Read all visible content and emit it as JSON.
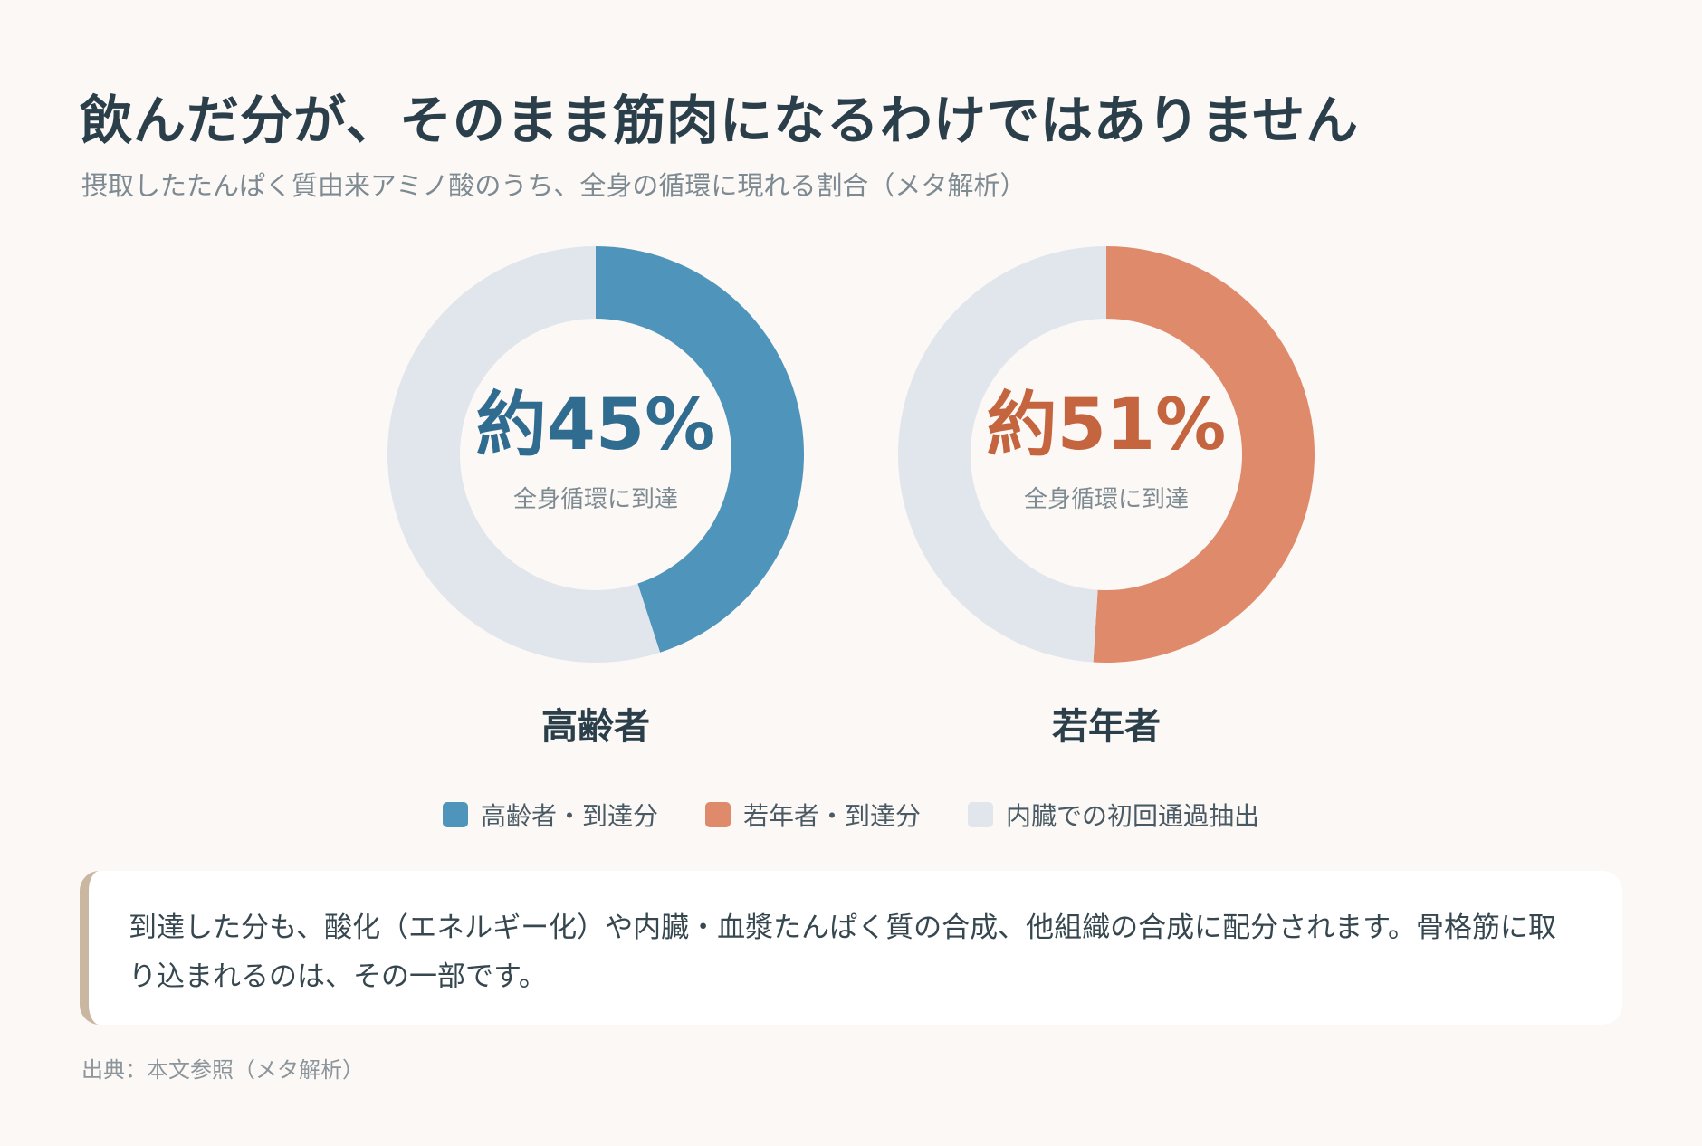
{
  "header": {
    "title": "飲んだ分が、そのまま筋肉になるわけではありません",
    "subtitle": "摂取したたんぱく質由来アミノ酸のうち、全身の循環に現れる割合（メタ解析）"
  },
  "colors": {
    "elderly": "#4f95bb",
    "elderly_text": "#2f6c8f",
    "young": "#e08a6c",
    "young_text": "#c5653f",
    "splanchnic": "#e0e6eb"
  },
  "chart_data": {
    "type": "pie",
    "charts": [
      {
        "group": "高齢者",
        "center_value": "約45%",
        "center_label": "全身循環に到達",
        "slices": [
          {
            "label": "高齢者・到達分",
            "value": 45
          },
          {
            "label": "内臓での初回通過抽出",
            "value": 55
          }
        ]
      },
      {
        "group": "若年者",
        "center_value": "約51%",
        "center_label": "全身循環に到達",
        "slices": [
          {
            "label": "若年者・到達分",
            "value": 51
          },
          {
            "label": "内臓での初回通過抽出",
            "value": 49
          }
        ]
      }
    ],
    "legend": [
      "高齢者・到達分",
      "若年者・到達分",
      "内臓での初回通過抽出"
    ],
    "legend_position": "bottom"
  },
  "note": {
    "text": "到達した分も、酸化（エネルギー化）や内臓・血漿たんぱく質の合成、他組織の合成に配分されます。骨格筋に取り込まれるのは、その一部です。"
  },
  "source": "出典：本文参照（メタ解析）"
}
